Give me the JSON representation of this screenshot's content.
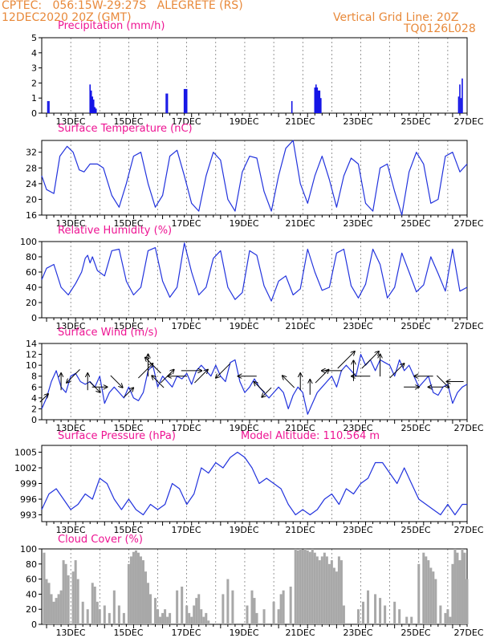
{
  "header": {
    "line1": "CPTEC:   056:15W-29:27S   ALEGRETE (RS)",
    "line2": "12DEC2020 20Z (GMT)",
    "grid_note": "Vertical Grid Line: 20Z",
    "code": "TQ0126L028"
  },
  "colors": {
    "header": "#e8893a",
    "title": "#ee1493",
    "line": "#2233dd",
    "bar": "#1414e6",
    "cloud": "#a8a8a8",
    "axis": "#000000"
  },
  "x_axis": {
    "start": "12DEC2020 20Z",
    "end": "27DEC2020 00Z",
    "tick_labels": [
      "13DEC",
      "15DEC",
      "17DEC",
      "19DEC",
      "21DEC",
      "23DEC",
      "25DEC",
      "27DEC"
    ]
  },
  "chart_data": [
    {
      "type": "bar",
      "id": "precip",
      "title": "Precipitation (mm/h)",
      "ylim": [
        0,
        5
      ],
      "yticks": [
        0,
        1,
        2,
        3,
        4,
        5
      ],
      "time_hours": [
        5,
        6,
        40,
        41,
        42,
        43,
        44,
        45,
        103,
        104,
        118,
        119,
        120,
        207,
        226,
        227,
        228,
        229,
        230,
        231,
        345,
        346,
        347,
        348
      ],
      "values": [
        0.8,
        0.8,
        1.9,
        1.5,
        1.1,
        0.9,
        0.4,
        0.3,
        1.3,
        1.3,
        1.6,
        1.6,
        1.6,
        0.8,
        1.7,
        1.9,
        1.7,
        1.5,
        1.5,
        1.0,
        1.1,
        1.9,
        1.0,
        2.3
      ]
    },
    {
      "type": "line",
      "id": "temp",
      "title": "Surface Temperature (nC)",
      "ylim": [
        16,
        35
      ],
      "yticks": [
        16,
        20,
        24,
        28,
        32
      ],
      "time_hours": [
        0,
        4,
        10,
        15,
        21,
        26,
        31,
        35,
        40,
        46,
        51,
        58,
        64,
        70,
        76,
        82,
        88,
        94,
        100,
        106,
        112,
        118,
        124,
        130,
        136,
        142,
        148,
        154,
        160,
        166,
        172,
        178,
        184,
        190,
        196,
        202,
        208,
        214,
        220,
        226,
        232,
        238,
        244,
        250,
        256,
        262,
        268,
        274,
        280,
        286,
        292,
        298,
        304,
        310,
        316,
        322,
        328,
        334,
        340,
        346,
        352
      ],
      "values": [
        26,
        22.5,
        21.5,
        31,
        33.5,
        32,
        27.5,
        27,
        29,
        29,
        28,
        21,
        18,
        24,
        31,
        32,
        24,
        18,
        21,
        31,
        32.5,
        26,
        19,
        17,
        26,
        32,
        30,
        20,
        17,
        27,
        31,
        30.5,
        22,
        17,
        26,
        33,
        35,
        24,
        19,
        26,
        31,
        25,
        18,
        26,
        30.5,
        29,
        19,
        17,
        28,
        29,
        22,
        16,
        27,
        32,
        29,
        19,
        20,
        31,
        32,
        27,
        29
      ]
    },
    {
      "type": "line",
      "id": "rh",
      "title": "Relative Humidity (%)",
      "ylim": [
        0,
        100
      ],
      "yticks": [
        0,
        20,
        40,
        60,
        80,
        100
      ],
      "time_hours": [
        0,
        4,
        10,
        16,
        22,
        28,
        33,
        36,
        38,
        40,
        42,
        46,
        52,
        58,
        64,
        70,
        76,
        82,
        88,
        94,
        100,
        106,
        112,
        118,
        124,
        130,
        136,
        142,
        148,
        154,
        160,
        166,
        172,
        178,
        184,
        190,
        196,
        202,
        208,
        214,
        220,
        226,
        232,
        238,
        244,
        250,
        256,
        262,
        268,
        274,
        280,
        286,
        292,
        298,
        304,
        310,
        316,
        322,
        328,
        334,
        340,
        346,
        352
      ],
      "values": [
        50,
        65,
        70,
        40,
        30,
        45,
        60,
        78,
        82,
        72,
        80,
        62,
        55,
        88,
        90,
        48,
        30,
        40,
        88,
        92,
        48,
        27,
        40,
        98,
        60,
        30,
        40,
        78,
        88,
        40,
        24,
        33,
        88,
        82,
        42,
        22,
        48,
        55,
        30,
        38,
        90,
        60,
        36,
        40,
        85,
        90,
        42,
        26,
        44,
        90,
        70,
        26,
        40,
        85,
        60,
        34,
        43,
        80,
        58,
        35,
        90,
        35,
        40
      ]
    },
    {
      "type": "line",
      "id": "wind",
      "title": "Surface Wind (m/s)",
      "ylim": [
        0,
        14
      ],
      "yticks": [
        0,
        2,
        4,
        6,
        8,
        10,
        12,
        14
      ],
      "time_hours": [
        0,
        4,
        8,
        12,
        16,
        20,
        24,
        28,
        32,
        36,
        40,
        44,
        48,
        52,
        56,
        60,
        64,
        68,
        72,
        76,
        80,
        84,
        88,
        92,
        96,
        100,
        104,
        108,
        112,
        116,
        120,
        124,
        128,
        132,
        136,
        140,
        144,
        148,
        152,
        156,
        160,
        164,
        168,
        172,
        176,
        180,
        184,
        188,
        192,
        196,
        200,
        204,
        208,
        212,
        216,
        220,
        224,
        228,
        232,
        236,
        240,
        244,
        248,
        252,
        256,
        260,
        264,
        268,
        272,
        276,
        280,
        284,
        288,
        292,
        296,
        300,
        304,
        308,
        312,
        316,
        320,
        324,
        328,
        332,
        336,
        340,
        344,
        348,
        352
      ],
      "values": [
        2,
        4,
        7,
        9,
        6,
        5,
        8,
        8.5,
        7,
        6.5,
        7,
        6,
        8,
        3,
        5,
        6,
        5,
        4,
        6,
        4,
        3.5,
        5,
        9,
        10,
        6,
        8,
        7,
        6,
        8,
        7.5,
        8.5,
        6.5,
        9,
        10,
        9,
        8,
        10,
        8,
        7,
        10.5,
        11,
        7,
        5,
        6,
        7.5,
        6,
        5,
        4,
        5,
        6,
        5,
        2,
        4.5,
        6,
        5,
        1,
        3,
        5,
        6,
        7,
        8,
        6,
        9,
        10,
        9,
        8,
        12,
        10,
        11,
        9,
        11,
        10.5,
        10,
        8,
        11,
        9,
        10,
        8,
        6,
        7,
        8,
        5,
        4.5,
        6,
        6.5,
        3,
        5,
        6,
        6.5
      ],
      "barbs": [
        {
          "t": 2,
          "speed": 4,
          "to": "NE"
        },
        {
          "t": 16,
          "speed": 7,
          "to": "N"
        },
        {
          "t": 26,
          "speed": 8,
          "to": "SW"
        },
        {
          "t": 38,
          "speed": 7,
          "to": "N"
        },
        {
          "t": 44,
          "speed": 6,
          "to": "SE"
        },
        {
          "t": 48,
          "speed": 6,
          "to": "E"
        },
        {
          "t": 62,
          "speed": 7,
          "to": "SE"
        },
        {
          "t": 72,
          "speed": 5,
          "to": "NE"
        },
        {
          "t": 86,
          "speed": 9,
          "to": "NE"
        },
        {
          "t": 88,
          "speed": 10,
          "to": "N"
        },
        {
          "t": 92,
          "speed": 10,
          "to": "NW"
        },
        {
          "t": 96,
          "speed": 7,
          "to": "NW"
        },
        {
          "t": 104,
          "speed": 8,
          "to": "NE"
        },
        {
          "t": 112,
          "speed": 8,
          "to": "W"
        },
        {
          "t": 124,
          "speed": 9,
          "to": "E"
        },
        {
          "t": 132,
          "speed": 8,
          "to": "NE"
        },
        {
          "t": 150,
          "speed": 9,
          "to": "SW"
        },
        {
          "t": 170,
          "speed": 8,
          "to": "W"
        },
        {
          "t": 180,
          "speed": 6,
          "to": "NW"
        },
        {
          "t": 186,
          "speed": 5,
          "to": "SW"
        },
        {
          "t": 204,
          "speed": 7,
          "to": "NW"
        },
        {
          "t": 214,
          "speed": 7,
          "to": "N"
        },
        {
          "t": 222,
          "speed": 6,
          "to": "N"
        },
        {
          "t": 232,
          "speed": 8,
          "to": "NE"
        },
        {
          "t": 240,
          "speed": 9,
          "to": "W"
        },
        {
          "t": 252,
          "speed": 11,
          "to": "NE"
        },
        {
          "t": 258,
          "speed": 9,
          "to": "N"
        },
        {
          "t": 264,
          "speed": 8,
          "to": "W"
        },
        {
          "t": 272,
          "speed": 11,
          "to": "NE"
        },
        {
          "t": 280,
          "speed": 10,
          "to": "N"
        },
        {
          "t": 294,
          "speed": 9,
          "to": "NE"
        },
        {
          "t": 306,
          "speed": 6,
          "to": "E"
        },
        {
          "t": 316,
          "speed": 8,
          "to": "W"
        },
        {
          "t": 326,
          "speed": 6,
          "to": "W"
        },
        {
          "t": 332,
          "speed": 7,
          "to": "SE"
        },
        {
          "t": 342,
          "speed": 7,
          "to": "W"
        }
      ]
    },
    {
      "type": "line",
      "id": "press",
      "title": "Surface Pressure (hPa)",
      "annotation": "Model Altitude: 110.564 m",
      "ylim": [
        991.7,
        1006.3
      ],
      "yticks": [
        993,
        996,
        999,
        1002,
        1005
      ],
      "ytick_labels": [
        "993",
        "996",
        "999",
        "1002",
        "1005"
      ],
      "time_hours": [
        0,
        6,
        12,
        18,
        24,
        30,
        36,
        42,
        48,
        54,
        60,
        66,
        72,
        78,
        84,
        90,
        96,
        102,
        108,
        114,
        120,
        126,
        132,
        138,
        144,
        150,
        156,
        162,
        168,
        174,
        180,
        186,
        192,
        198,
        204,
        210,
        216,
        222,
        228,
        234,
        240,
        246,
        252,
        258,
        264,
        270,
        276,
        282,
        288,
        294,
        300,
        306,
        312,
        318,
        324,
        330,
        336,
        342,
        348,
        352
      ],
      "values": [
        994,
        997,
        998,
        996,
        994,
        995,
        997,
        996,
        1000,
        999,
        996,
        994,
        996,
        994,
        993,
        995,
        994,
        995,
        999,
        998,
        995,
        997,
        1002,
        1001,
        1003,
        1002,
        1004,
        1005,
        1004,
        1002,
        999,
        1000,
        999,
        998,
        995,
        993,
        994,
        993,
        994,
        996,
        997,
        995,
        998,
        997,
        999,
        1000,
        1003,
        1003,
        1001,
        999,
        1002,
        999,
        996,
        995,
        994,
        993,
        995,
        993,
        995,
        995
      ]
    },
    {
      "type": "bar",
      "id": "cloud",
      "title": "Cloud Cover (%)",
      "ylim": [
        0,
        100
      ],
      "yticks": [
        0,
        20,
        40,
        60,
        80,
        100
      ],
      "time_hours": [
        2,
        4,
        6,
        8,
        10,
        12,
        14,
        16,
        18,
        20,
        22,
        26,
        28,
        30,
        34,
        38,
        42,
        44,
        46,
        48,
        52,
        56,
        60,
        64,
        68,
        72,
        74,
        76,
        78,
        80,
        82,
        84,
        86,
        88,
        90,
        94,
        96,
        98,
        100,
        102,
        104,
        106,
        112,
        116,
        120,
        122,
        124,
        126,
        128,
        130,
        132,
        134,
        136,
        138,
        150,
        154,
        158,
        170,
        174,
        176,
        178,
        184,
        192,
        196,
        198,
        200,
        206,
        210,
        212,
        214,
        216,
        218,
        220,
        222,
        224,
        226,
        228,
        230,
        232,
        234,
        236,
        238,
        240,
        242,
        244,
        246,
        248,
        250,
        262,
        266,
        270,
        276,
        280,
        284,
        292,
        296,
        302,
        306,
        312,
        316,
        318,
        320,
        322,
        324,
        326,
        330,
        334,
        336,
        338,
        340,
        342,
        344,
        346,
        348,
        350,
        352
      ],
      "values": [
        95,
        60,
        55,
        40,
        30,
        35,
        40,
        45,
        85,
        80,
        65,
        70,
        85,
        60,
        30,
        20,
        55,
        50,
        30,
        20,
        25,
        15,
        45,
        25,
        15,
        80,
        90,
        96,
        98,
        95,
        90,
        85,
        70,
        55,
        40,
        35,
        20,
        10,
        15,
        20,
        10,
        15,
        45,
        50,
        25,
        15,
        10,
        25,
        35,
        40,
        20,
        10,
        15,
        5,
        40,
        60,
        45,
        25,
        45,
        35,
        15,
        20,
        30,
        20,
        40,
        45,
        50,
        100,
        98,
        100,
        99,
        100,
        98,
        96,
        100,
        95,
        90,
        85,
        90,
        95,
        90,
        80,
        85,
        75,
        70,
        90,
        85,
        25,
        20,
        30,
        45,
        40,
        35,
        25,
        30,
        20,
        10,
        10,
        80,
        95,
        90,
        85,
        75,
        70,
        60,
        25,
        15,
        20,
        10,
        80,
        100,
        95,
        85,
        100,
        95,
        60
      ]
    }
  ]
}
